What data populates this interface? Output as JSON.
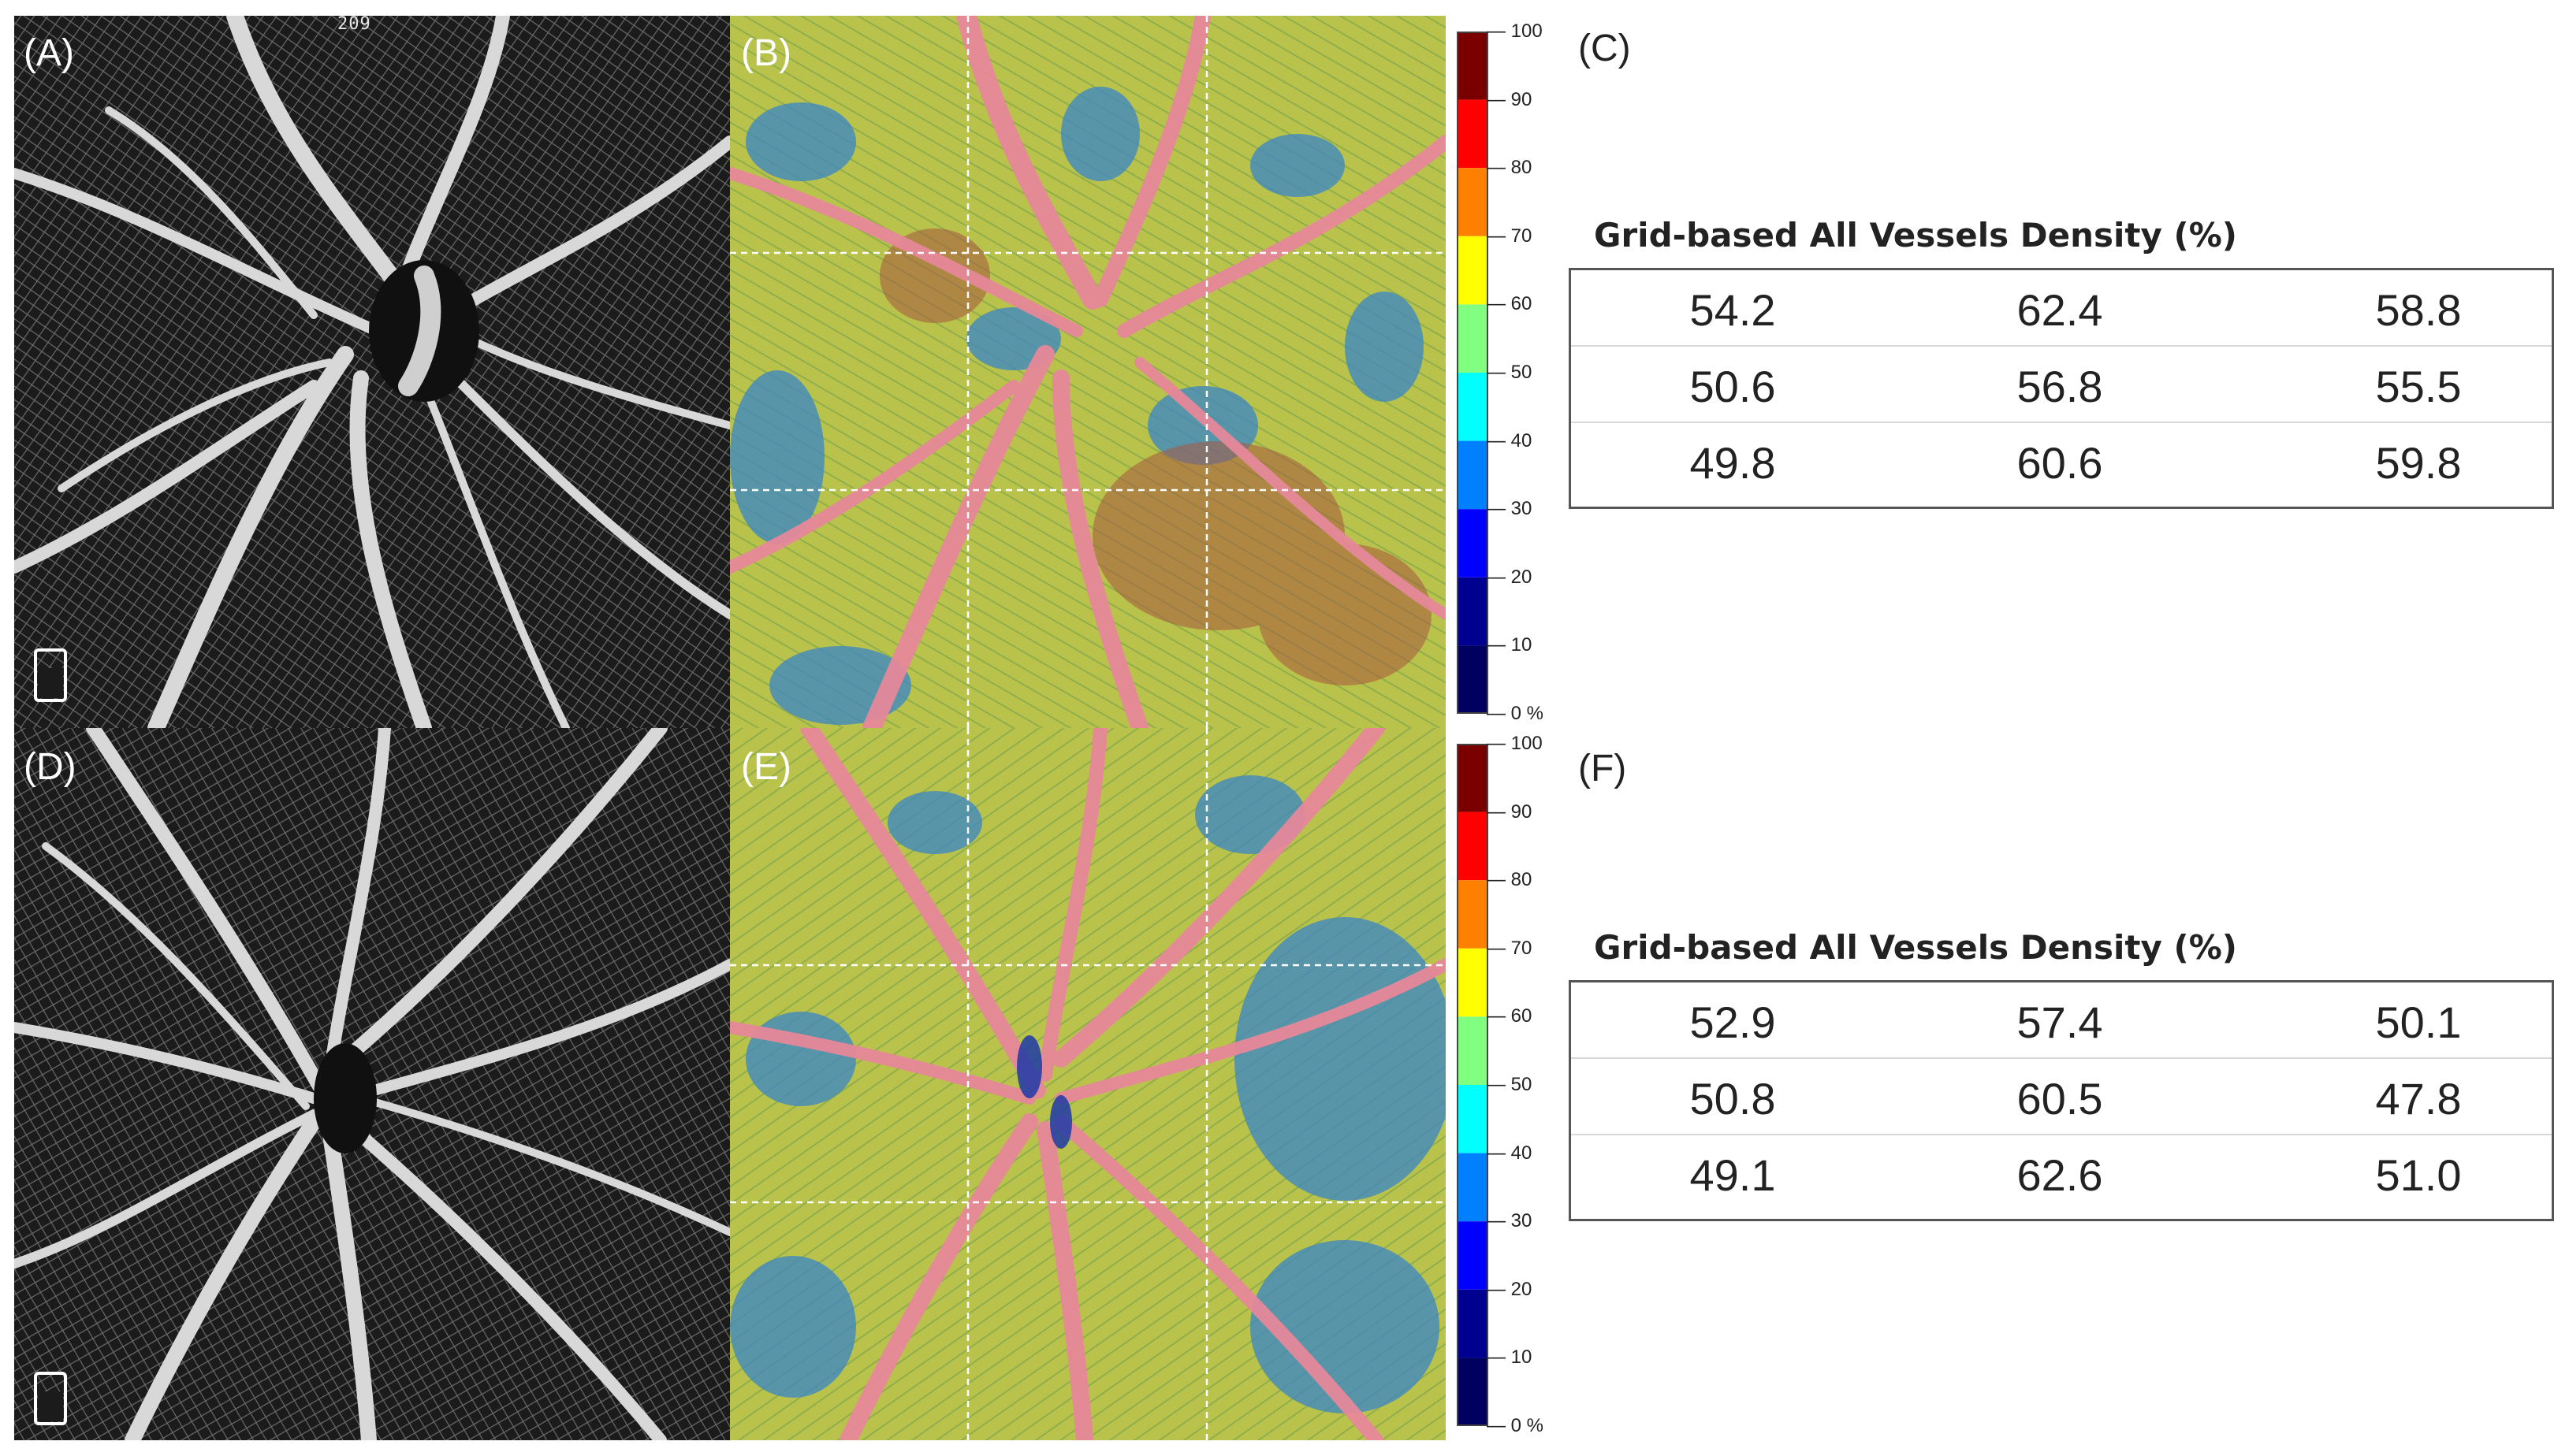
{
  "panels": {
    "a": {
      "label": "(A)",
      "top_number": "209"
    },
    "b": {
      "label": "(B)"
    },
    "c": {
      "label": "(C)"
    },
    "d": {
      "label": "(D)"
    },
    "e": {
      "label": "(E)"
    },
    "f": {
      "label": "(F)"
    }
  },
  "color_scale": {
    "ticks": [
      "100",
      "90",
      "80",
      "70",
      "60",
      "50",
      "40",
      "30",
      "20",
      "10",
      "0 %"
    ],
    "colors": [
      "#7a0000",
      "#ff0000",
      "#ff8000",
      "#ffff00",
      "#80ff80",
      "#00ffff",
      "#0080ff",
      "#0000ff",
      "#000090",
      "#000060"
    ]
  },
  "tables": {
    "top": {
      "title": "Grid-based All Vessels Density (%)",
      "rows": [
        [
          "54.2",
          "62.4",
          "58.8"
        ],
        [
          "50.6",
          "56.8",
          "55.5"
        ],
        [
          "49.8",
          "60.6",
          "59.8"
        ]
      ]
    },
    "bottom": {
      "title": "Grid-based All Vessels Density (%)",
      "rows": [
        [
          "52.9",
          "57.4",
          "50.1"
        ],
        [
          "50.8",
          "60.5",
          "47.8"
        ],
        [
          "49.1",
          "62.6",
          "51.0"
        ]
      ]
    }
  },
  "colors": {
    "oct_background": "#1b1b1b",
    "vessel": "#d8d8d8",
    "heatmap_base": "#b9c24a",
    "heatmap_vessel": "#e6889a",
    "heatmap_low": "#3a86c8"
  }
}
